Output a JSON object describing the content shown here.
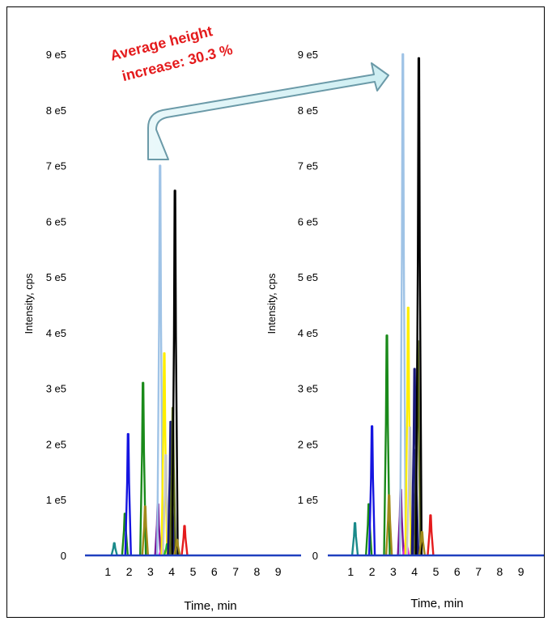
{
  "annotation": {
    "line1": "Average height",
    "line2": "increase: 30.3 %",
    "color": "#e41a1c"
  },
  "chart_data": [
    {
      "type": "line",
      "title": "",
      "xlabel": "Time, min",
      "ylabel": "Intensity, cps",
      "xlim": [
        0,
        10
      ],
      "ylim": [
        0,
        900000
      ],
      "x_ticks": [
        "1",
        "2",
        "3",
        "4",
        "5",
        "6",
        "7",
        "8",
        "9"
      ],
      "y_ticks": [
        "0",
        "1 e5",
        "2 e5",
        "3 e5",
        "4 e5",
        "5 e5",
        "6 e5",
        "7 e5",
        "8 e5",
        "9 e5"
      ],
      "grid": false,
      "baseline_color": "#1f3fbf",
      "peaks": [
        {
          "color": "#1a8a8a",
          "x": 1.3,
          "y": 22000
        },
        {
          "color": "#1a8a1a",
          "x": 1.8,
          "y": 75000
        },
        {
          "color": "#1515e0",
          "x": 1.95,
          "y": 218000
        },
        {
          "color": "#1a8a1a",
          "x": 2.65,
          "y": 310000
        },
        {
          "color": "#a08a1a",
          "x": 2.75,
          "y": 88000
        },
        {
          "color": "#7a1a9a",
          "x": 3.35,
          "y": 92000
        },
        {
          "color": "#9fc3e6",
          "x": 3.45,
          "y": 700000
        },
        {
          "color": "#e020e0",
          "x": 3.55,
          "y": 18000
        },
        {
          "color": "#ffee00",
          "x": 3.65,
          "y": 363000
        },
        {
          "color": "#c8c8c8",
          "x": 3.72,
          "y": 180000
        },
        {
          "color": "#20c020",
          "x": 3.78,
          "y": 20000
        },
        {
          "color": "#1a1a7a",
          "x": 3.95,
          "y": 240000
        },
        {
          "color": "#1a1a7a",
          "x": 4.0,
          "y": 140000
        },
        {
          "color": "#5a6a1a",
          "x": 4.05,
          "y": 265000
        },
        {
          "color": "#000000",
          "x": 4.15,
          "y": 655000
        },
        {
          "color": "#a08a1a",
          "x": 4.25,
          "y": 28000
        },
        {
          "color": "#e41a1c",
          "x": 4.6,
          "y": 53000
        }
      ]
    },
    {
      "type": "line",
      "title": "",
      "xlabel": "Time, min",
      "ylabel": "Intensity, cps",
      "xlim": [
        0,
        10
      ],
      "ylim": [
        0,
        900000
      ],
      "x_ticks": [
        "1",
        "2",
        "3",
        "4",
        "5",
        "6",
        "7",
        "8",
        "9"
      ],
      "y_ticks": [
        "0",
        "1 e5",
        "2 e5",
        "3 e5",
        "4 e5",
        "5 e5",
        "6 e5",
        "7 e5",
        "8 e5",
        "9 e5"
      ],
      "grid": false,
      "baseline_color": "#1f3fbf",
      "peaks": [
        {
          "color": "#1a8a8a",
          "x": 1.2,
          "y": 58000
        },
        {
          "color": "#1a8a1a",
          "x": 1.85,
          "y": 92000
        },
        {
          "color": "#1515e0",
          "x": 2.0,
          "y": 232000
        },
        {
          "color": "#1a8a1a",
          "x": 2.7,
          "y": 395000
        },
        {
          "color": "#a08a1a",
          "x": 2.8,
          "y": 108000
        },
        {
          "color": "#7a1a9a",
          "x": 3.35,
          "y": 118000
        },
        {
          "color": "#9fc3e6",
          "x": 3.45,
          "y": 900000
        },
        {
          "color": "#e020e0",
          "x": 3.6,
          "y": 32000
        },
        {
          "color": "#ffee00",
          "x": 3.7,
          "y": 445000
        },
        {
          "color": "#c8c8c8",
          "x": 3.78,
          "y": 230000
        },
        {
          "color": "#1a1a7a",
          "x": 4.0,
          "y": 335000
        },
        {
          "color": "#1a1a7a",
          "x": 4.05,
          "y": 190000
        },
        {
          "color": "#5a6a1a",
          "x": 4.15,
          "y": 385000
        },
        {
          "color": "#000000",
          "x": 4.2,
          "y": 893000
        },
        {
          "color": "#a08a1a",
          "x": 4.35,
          "y": 42000
        },
        {
          "color": "#e41a1c",
          "x": 4.75,
          "y": 72000
        }
      ]
    }
  ]
}
